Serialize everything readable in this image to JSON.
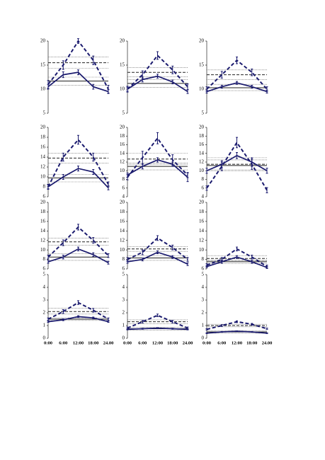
{
  "chart_data": [
    {
      "type": "line",
      "ylim": [
        5,
        20
      ],
      "yticks": [
        5,
        10,
        15,
        20
      ],
      "series": [
        {
          "color": "#1a1a6e",
          "dash": true,
          "values": [
            11,
            15,
            20,
            16,
            10
          ],
          "errors": [
            0.8,
            0.9,
            0.5,
            0.9,
            0.8
          ]
        },
        {
          "color": "#1a1a6e",
          "dash": false,
          "values": [
            10.5,
            13,
            13.5,
            10.5,
            9.5
          ],
          "errors": [
            0.5,
            0.6,
            0.5,
            0.5,
            0.4
          ]
        }
      ],
      "hlines": [
        {
          "value": 16.7,
          "style": "dotted"
        },
        {
          "value": 15.5,
          "style": "dashed"
        },
        {
          "value": 14.3,
          "style": "dotted"
        },
        {
          "value": 12.5,
          "style": "dotted"
        },
        {
          "value": 11.7,
          "style": "solid"
        },
        {
          "value": 10.8,
          "style": "dotted"
        }
      ]
    },
    {
      "type": "line",
      "ylim": [
        5,
        20
      ],
      "yticks": [
        5,
        10,
        15,
        20
      ],
      "series": [
        {
          "color": "#1a1a6e",
          "dash": true,
          "values": [
            10,
            13,
            17,
            14,
            10.5
          ],
          "errors": [
            0.6,
            0.8,
            0.8,
            0.8,
            0.6
          ]
        },
        {
          "color": "#1a1a6e",
          "dash": false,
          "values": [
            10,
            12,
            12.7,
            11.5,
            9.5
          ],
          "errors": [
            0.4,
            0.5,
            0.4,
            0.4,
            0.4
          ]
        }
      ],
      "hlines": [
        {
          "value": 14.5,
          "style": "dotted"
        },
        {
          "value": 13.5,
          "style": "dashed"
        },
        {
          "value": 12.6,
          "style": "dotted"
        },
        {
          "value": 12,
          "style": "dotted"
        },
        {
          "value": 11.2,
          "style": "solid"
        },
        {
          "value": 10.4,
          "style": "dotted"
        }
      ]
    },
    {
      "type": "line",
      "ylim": [
        5,
        20
      ],
      "yticks": [
        5,
        10,
        15,
        20
      ],
      "series": [
        {
          "color": "#1a1a6e",
          "dash": true,
          "values": [
            10,
            13,
            16,
            13.5,
            10
          ],
          "errors": [
            0.5,
            0.7,
            0.7,
            0.7,
            0.5
          ]
        },
        {
          "color": "#1a1a6e",
          "dash": false,
          "values": [
            9.5,
            10.5,
            11.3,
            10.5,
            9.5
          ],
          "errors": [
            0.3,
            0.3,
            0.3,
            0.3,
            0.3
          ]
        }
      ],
      "hlines": [
        {
          "value": 14,
          "style": "dotted"
        },
        {
          "value": 13,
          "style": "dashed"
        },
        {
          "value": 12,
          "style": "dotted"
        },
        {
          "value": 11,
          "style": "dotted"
        },
        {
          "value": 10.3,
          "style": "solid"
        },
        {
          "value": 9.7,
          "style": "dotted"
        }
      ]
    },
    {
      "type": "line",
      "ylim": [
        6,
        20
      ],
      "yticks": [
        6,
        8,
        10,
        12,
        14,
        16,
        18,
        20
      ],
      "series": [
        {
          "color": "#1a1a6e",
          "dash": true,
          "values": [
            8,
            14,
            17.5,
            14,
            8.5
          ],
          "errors": [
            0.5,
            0.8,
            0.9,
            0.8,
            0.5
          ]
        },
        {
          "color": "#1a1a6e",
          "dash": false,
          "values": [
            8,
            10,
            11.7,
            11,
            7.8
          ],
          "errors": [
            0.4,
            0.5,
            0.5,
            0.5,
            0.4
          ]
        }
      ],
      "hlines": [
        {
          "value": 14.8,
          "style": "dotted"
        },
        {
          "value": 13.8,
          "style": "dashed"
        },
        {
          "value": 12.8,
          "style": "dotted"
        },
        {
          "value": 10.5,
          "style": "dotted"
        },
        {
          "value": 9.8,
          "style": "solid"
        },
        {
          "value": 9,
          "style": "dotted"
        }
      ]
    },
    {
      "type": "line",
      "ylim": [
        4,
        20
      ],
      "yticks": [
        4,
        6,
        8,
        10,
        12,
        14,
        16,
        18,
        20
      ],
      "series": [
        {
          "color": "#1a1a6e",
          "dash": true,
          "values": [
            8.5,
            13,
            17.5,
            12.5,
            9
          ],
          "errors": [
            0.6,
            1.5,
            1.3,
            1.2,
            0.6
          ]
        },
        {
          "color": "#1a1a6e",
          "dash": false,
          "values": [
            9,
            11,
            12.5,
            11.5,
            8.5
          ],
          "errors": [
            0.5,
            0.6,
            0.5,
            0.5,
            1
          ]
        }
      ],
      "hlines": [
        {
          "value": 14,
          "style": "dotted"
        },
        {
          "value": 12.7,
          "style": "dashed"
        },
        {
          "value": 11.5,
          "style": "dotted"
        },
        {
          "value": 11.8,
          "style": "dotted"
        },
        {
          "value": 11,
          "style": "solid"
        },
        {
          "value": 10.2,
          "style": "dotted"
        }
      ]
    },
    {
      "type": "line",
      "ylim": [
        4,
        20
      ],
      "yticks": [
        4,
        6,
        8,
        10,
        12,
        14,
        16,
        18,
        20
      ],
      "series": [
        {
          "color": "#1a1a6e",
          "dash": true,
          "values": [
            6,
            11,
            16.5,
            11.5,
            5.5
          ],
          "errors": [
            0.5,
            1,
            1.2,
            1.2,
            0.6
          ]
        },
        {
          "color": "#1a1a6e",
          "dash": false,
          "values": [
            10,
            11.5,
            13.5,
            12,
            10
          ],
          "errors": [
            0.6,
            0.8,
            0.7,
            1,
            0.6
          ]
        }
      ],
      "hlines": [
        {
          "value": 13,
          "style": "dotted"
        },
        {
          "value": 11.5,
          "style": "dashed"
        },
        {
          "value": 10,
          "style": "dotted"
        },
        {
          "value": 12.5,
          "style": "dotted"
        },
        {
          "value": 11.2,
          "style": "solid"
        },
        {
          "value": 10.2,
          "style": "dotted"
        }
      ]
    },
    {
      "type": "line",
      "ylim": [
        6,
        20
      ],
      "yticks": [
        6,
        8,
        10,
        12,
        14,
        16,
        18,
        20
      ],
      "series": [
        {
          "color": "#1a1a6e",
          "dash": true,
          "values": [
            8.5,
            11.5,
            14.8,
            12,
            8.8
          ],
          "errors": [
            0.4,
            0.6,
            0.6,
            0.6,
            0.4
          ]
        },
        {
          "color": "#1a1a6e",
          "dash": false,
          "values": [
            7.5,
            8.5,
            10.2,
            9,
            7.3
          ],
          "errors": [
            0.3,
            0.4,
            0.4,
            0.4,
            0.3
          ]
        }
      ],
      "hlines": [
        {
          "value": 12.5,
          "style": "dotted"
        },
        {
          "value": 11.7,
          "style": "dashed"
        },
        {
          "value": 11,
          "style": "dotted"
        },
        {
          "value": 9.2,
          "style": "dotted"
        },
        {
          "value": 8.5,
          "style": "solid"
        },
        {
          "value": 7.8,
          "style": "dotted"
        }
      ]
    },
    {
      "type": "line",
      "ylim": [
        6,
        20
      ],
      "yticks": [
        6,
        8,
        10,
        12,
        14,
        16,
        18,
        20
      ],
      "series": [
        {
          "color": "#1a1a6e",
          "dash": true,
          "values": [
            8,
            9.5,
            12.5,
            10.5,
            8
          ],
          "errors": [
            0.4,
            0.5,
            0.5,
            0.5,
            0.4
          ]
        },
        {
          "color": "#1a1a6e",
          "dash": false,
          "values": [
            7.5,
            8,
            9.5,
            8.5,
            7
          ],
          "errors": [
            0.3,
            0.3,
            0.3,
            0.3,
            0.3
          ]
        }
      ],
      "hlines": [
        {
          "value": 10.7,
          "style": "dotted"
        },
        {
          "value": 10.2,
          "style": "dashed"
        },
        {
          "value": 9.7,
          "style": "dotted"
        },
        {
          "value": 8.8,
          "style": "dotted"
        },
        {
          "value": 8.3,
          "style": "solid"
        },
        {
          "value": 7.8,
          "style": "dotted"
        }
      ]
    },
    {
      "type": "line",
      "ylim": [
        6,
        20
      ],
      "yticks": [
        6,
        8,
        10,
        12,
        14,
        16,
        18,
        20
      ],
      "series": [
        {
          "color": "#1a1a6e",
          "dash": true,
          "values": [
            6.8,
            8,
            10.2,
            8.5,
            6.5
          ],
          "errors": [
            0.3,
            0.4,
            0.4,
            0.4,
            0.3
          ]
        },
        {
          "color": "#1a1a6e",
          "dash": false,
          "values": [
            6.5,
            7.5,
            8.5,
            7.5,
            6.3
          ],
          "errors": [
            0.2,
            0.3,
            0.3,
            0.3,
            0.2
          ]
        }
      ],
      "hlines": [
        {
          "value": 8.8,
          "style": "dotted"
        },
        {
          "value": 8.2,
          "style": "dashed"
        },
        {
          "value": 7.7,
          "style": "dotted"
        },
        {
          "value": 7.9,
          "style": "dotted"
        },
        {
          "value": 7.5,
          "style": "solid"
        },
        {
          "value": 7.1,
          "style": "dotted"
        }
      ]
    },
    {
      "type": "line",
      "ylim": [
        0,
        5
      ],
      "yticks": [
        0,
        1,
        2,
        3,
        4,
        5
      ],
      "categories": [
        "0:00",
        "6:00",
        "12:00",
        "18:00",
        "24.00"
      ],
      "series": [
        {
          "color": "#1a1a6e",
          "dash": true,
          "values": [
            1.5,
            2.1,
            2.8,
            2.2,
            1.5
          ],
          "errors": [
            0.1,
            0.15,
            0.15,
            0.15,
            0.1
          ]
        },
        {
          "color": "#1a1a6e",
          "dash": false,
          "values": [
            1.3,
            1.45,
            1.7,
            1.6,
            1.3
          ],
          "errors": [
            0.05,
            0.07,
            0.07,
            0.07,
            0.05
          ]
        }
      ],
      "hlines": [
        {
          "value": 2.35,
          "style": "dotted"
        },
        {
          "value": 2.1,
          "style": "dashed"
        },
        {
          "value": 1.9,
          "style": "dotted"
        },
        {
          "value": 1.6,
          "style": "dotted"
        },
        {
          "value": 1.5,
          "style": "solid"
        },
        {
          "value": 1.4,
          "style": "dotted"
        }
      ]
    },
    {
      "type": "line",
      "ylim": [
        0,
        5
      ],
      "yticks": [
        0,
        1,
        2,
        3,
        4,
        5
      ],
      "categories": [
        "0:00",
        "6:00",
        "12:00",
        "18:00",
        "24.00"
      ],
      "series": [
        {
          "color": "#1a1a6e",
          "dash": true,
          "values": [
            0.8,
            1.3,
            1.8,
            1.3,
            0.8
          ],
          "errors": [
            0.08,
            0.1,
            0.1,
            0.1,
            0.08
          ]
        },
        {
          "color": "#1a1a6e",
          "dash": false,
          "values": [
            0.7,
            0.75,
            0.8,
            0.75,
            0.7
          ],
          "errors": [
            0.04,
            0.04,
            0.04,
            0.04,
            0.04
          ]
        }
      ],
      "hlines": [
        {
          "value": 1.45,
          "style": "dotted"
        },
        {
          "value": 1.3,
          "style": "dashed"
        },
        {
          "value": 1.15,
          "style": "dotted"
        },
        {
          "value": 0.85,
          "style": "dotted"
        },
        {
          "value": 0.75,
          "style": "solid"
        },
        {
          "value": 0.65,
          "style": "dotted"
        }
      ]
    },
    {
      "type": "line",
      "ylim": [
        0,
        5
      ],
      "yticks": [
        0,
        1,
        2,
        3,
        4,
        5
      ],
      "categories": [
        "0:00",
        "6:00",
        "12:00",
        "18:00",
        "24.00"
      ],
      "series": [
        {
          "color": "#1a1a6e",
          "dash": true,
          "values": [
            0.7,
            1,
            1.3,
            1.1,
            0.75
          ],
          "errors": [
            0.05,
            0.07,
            0.07,
            0.07,
            0.05
          ]
        },
        {
          "color": "#1a1a6e",
          "dash": false,
          "values": [
            0.4,
            0.5,
            0.55,
            0.5,
            0.4
          ],
          "errors": [
            0.03,
            0.03,
            0.03,
            0.03,
            0.03
          ]
        }
      ],
      "hlines": [
        {
          "value": 1.1,
          "style": "dotted"
        },
        {
          "value": 1,
          "style": "dashed"
        },
        {
          "value": 0.9,
          "style": "dotted"
        },
        {
          "value": 0.6,
          "style": "dotted"
        },
        {
          "value": 0.5,
          "style": "solid"
        },
        {
          "value": 0.4,
          "style": "dotted"
        }
      ]
    }
  ]
}
